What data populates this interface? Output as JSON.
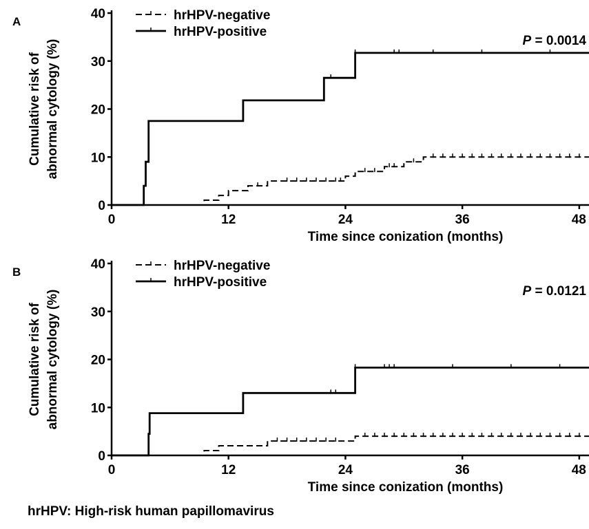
{
  "chart_data": [
    {
      "type": "line",
      "panel_label": "A",
      "xlabel": "Time since conization (months)",
      "ylabel": [
        "Cumulative risk of",
        "abnormal cytology (%)"
      ],
      "xlim": [
        0,
        49
      ],
      "ylim": [
        0,
        40
      ],
      "x_ticks": [
        0,
        12,
        24,
        36,
        48
      ],
      "y_ticks": [
        0,
        10,
        20,
        30,
        40
      ],
      "annotation": {
        "italic": "P",
        "rest": " = 0.0014"
      },
      "legend_position": "top-left",
      "series": [
        {
          "name": "hrHPV-negative",
          "style": "dashed",
          "steps": [
            [
              0,
              0
            ],
            [
              9.5,
              0
            ],
            [
              9.5,
              1
            ],
            [
              11,
              1
            ],
            [
              11,
              2
            ],
            [
              12,
              2
            ],
            [
              12,
              3
            ],
            [
              14,
              3
            ],
            [
              14,
              4
            ],
            [
              16,
              4
            ],
            [
              16,
              5
            ],
            [
              24,
              5
            ],
            [
              24,
              6
            ],
            [
              25,
              6
            ],
            [
              25,
              7
            ],
            [
              28,
              7
            ],
            [
              28,
              8
            ],
            [
              30,
              8
            ],
            [
              30,
              9
            ],
            [
              32,
              9
            ],
            [
              32,
              10
            ],
            [
              49,
              10
            ]
          ],
          "censors": [
            15,
            18,
            19,
            20,
            21,
            22,
            23,
            23.5,
            26,
            27,
            28.5,
            29,
            31,
            33,
            34,
            35,
            36,
            37,
            38,
            39,
            40,
            41,
            42,
            43,
            44,
            45,
            46,
            47,
            48
          ]
        },
        {
          "name": "hrHPV-positive",
          "style": "solid",
          "steps": [
            [
              0,
              0
            ],
            [
              3.3,
              0
            ],
            [
              3.3,
              4
            ],
            [
              3.5,
              4
            ],
            [
              3.5,
              9
            ],
            [
              3.8,
              9
            ],
            [
              3.8,
              17.5
            ],
            [
              13.5,
              17.5
            ],
            [
              13.5,
              21.8
            ],
            [
              21.8,
              21.8
            ],
            [
              21.8,
              26.5
            ],
            [
              25,
              26.5
            ],
            [
              25,
              31.7
            ],
            [
              49,
              31.7
            ]
          ],
          "censors": [
            22.5,
            25,
            29,
            29.5,
            33,
            38,
            45
          ]
        }
      ]
    },
    {
      "type": "line",
      "panel_label": "B",
      "xlabel": "Time since conization (months)",
      "ylabel": [
        "Cumulative risk of",
        "abnormal cytology (%)"
      ],
      "xlim": [
        0,
        49
      ],
      "ylim": [
        0,
        40
      ],
      "x_ticks": [
        0,
        12,
        24,
        36,
        48
      ],
      "y_ticks": [
        0,
        10,
        20,
        30,
        40
      ],
      "annotation": {
        "italic": "P",
        "rest": " = 0.0121"
      },
      "legend_position": "top-left",
      "series": [
        {
          "name": "hrHPV-negative",
          "style": "dashed",
          "steps": [
            [
              0,
              0
            ],
            [
              9.5,
              0
            ],
            [
              9.5,
              1
            ],
            [
              11,
              1
            ],
            [
              11,
              2
            ],
            [
              16,
              2
            ],
            [
              16,
              3
            ],
            [
              25,
              3
            ],
            [
              25,
              4
            ],
            [
              49,
              4
            ]
          ],
          "censors": [
            17,
            18,
            19,
            20,
            21,
            22,
            23,
            26,
            27,
            28,
            29,
            30,
            31,
            32,
            33,
            34,
            35,
            36,
            37,
            38,
            39,
            40,
            41,
            42,
            43,
            44,
            45,
            46,
            47,
            48
          ]
        },
        {
          "name": "hrHPV-positive",
          "style": "solid",
          "steps": [
            [
              0,
              0
            ],
            [
              3.8,
              0
            ],
            [
              3.8,
              4.5
            ],
            [
              3.9,
              4.5
            ],
            [
              3.9,
              8.8
            ],
            [
              13.5,
              8.8
            ],
            [
              13.5,
              13
            ],
            [
              25,
              13
            ],
            [
              25,
              18.3
            ],
            [
              49,
              18.3
            ]
          ],
          "censors": [
            22.5,
            23,
            25,
            28,
            28.5,
            29,
            35,
            41,
            46
          ]
        }
      ]
    }
  ],
  "footnote": "hrHPV: High-risk human papillomavirus"
}
